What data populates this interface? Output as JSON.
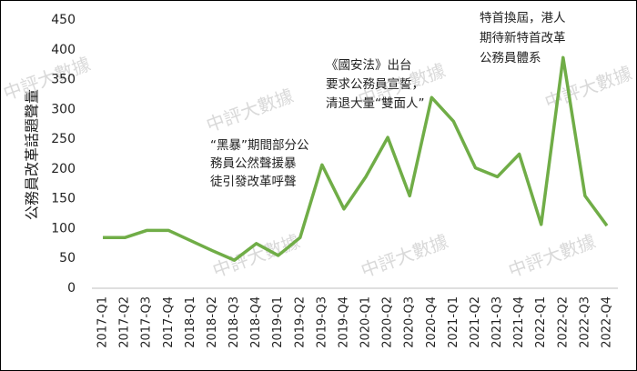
{
  "chart_data": {
    "type": "line",
    "y_label": "公務員改革話題聲量",
    "watermark": "中評大數據",
    "categories": [
      "2017-Q1",
      "2017-Q2",
      "2017-Q3",
      "2017-Q4",
      "2018-Q1",
      "2018-Q2",
      "2018-Q3",
      "2018-Q4",
      "2019-Q1",
      "2019-Q2",
      "2019-Q3",
      "2019-Q4",
      "2020-Q1",
      "2020-Q2",
      "2020-Q3",
      "2020-Q4",
      "2021-Q1",
      "2021-Q2",
      "2021-Q3",
      "2021-Q4",
      "2022-Q1",
      "2022-Q2",
      "2022-Q3",
      "2022-Q4"
    ],
    "series": [
      {
        "name": "公務員改革話題聲量",
        "color": "#70ad47",
        "values": [
          85,
          85,
          97,
          97,
          80,
          63,
          47,
          75,
          55,
          85,
          207,
          133,
          187,
          253,
          155,
          320,
          280,
          202,
          187,
          225,
          107,
          387,
          155,
          105
        ]
      }
    ],
    "ylim": [
      0,
      450
    ],
    "yticks": [
      0,
      50,
      100,
      150,
      200,
      250,
      300,
      350,
      400,
      450
    ],
    "annotations": [
      {
        "lines": [
          "“黑暴”期間部分公",
          "務員公然聲援暴",
          "徒引發改革呼聲"
        ]
      },
      {
        "lines": [
          "《國安法》出台",
          "要求公務員宣誓，",
          "清退大量“雙面人”"
        ]
      },
      {
        "lines": [
          "特首換屆，港人",
          "期待新特首改革",
          "公務員體系"
        ]
      }
    ]
  }
}
